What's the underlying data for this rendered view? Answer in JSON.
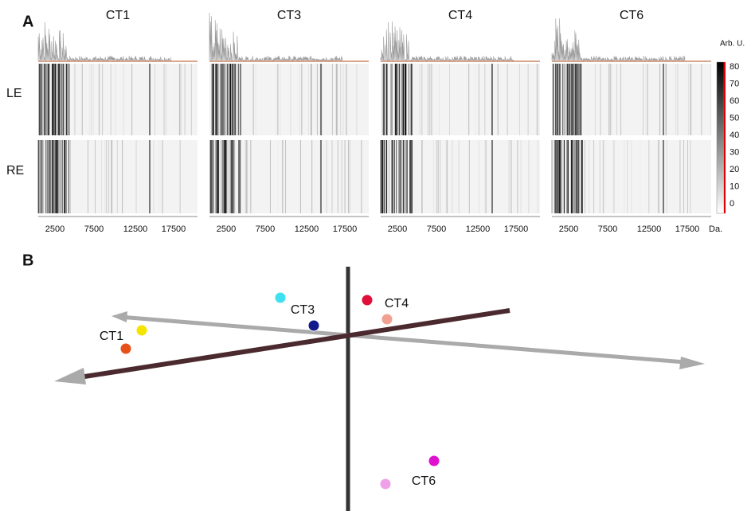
{
  "panel_a": {
    "label": "A",
    "samples": [
      "CT1",
      "CT3",
      "CT4",
      "CT6"
    ],
    "rows": [
      "LE",
      "RE"
    ],
    "x_ticks": [
      2500,
      7500,
      12500,
      17500
    ],
    "x_unit": "Da.",
    "colorbar": {
      "title": "Arb. U.",
      "ticks": [
        80,
        70,
        60,
        50,
        40,
        30,
        20,
        10,
        0
      ]
    }
  },
  "panel_b": {
    "label": "B",
    "groups": [
      {
        "label": "CT1",
        "colors": [
          "#f5e400",
          "#e8501a"
        ]
      },
      {
        "label": "CT3",
        "colors": [
          "#3fe0f0",
          "#101a8a"
        ]
      },
      {
        "label": "CT4",
        "colors": [
          "#e0103a",
          "#f0a090"
        ]
      },
      {
        "label": "CT6",
        "colors": [
          "#e010d0",
          "#f0a0e8"
        ]
      }
    ]
  }
}
